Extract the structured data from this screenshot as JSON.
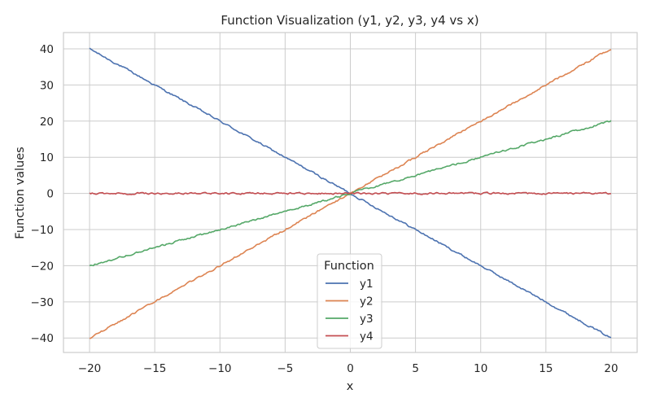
{
  "chart_data": {
    "type": "line",
    "title": "Function Visualization (y1, y2, y3, y4 vs x)",
    "xlabel": "x",
    "ylabel": "Function values",
    "xlim": [
      -22,
      22
    ],
    "ylim": [
      -44,
      44.5
    ],
    "x_ticks": [
      -20,
      -15,
      -10,
      -5,
      0,
      5,
      10,
      15,
      20
    ],
    "y_ticks": [
      -40,
      -30,
      -20,
      -10,
      0,
      10,
      20,
      30,
      40
    ],
    "x_tick_labels": [
      "−20",
      "−15",
      "−10",
      "−5",
      "0",
      "5",
      "10",
      "15",
      "20"
    ],
    "y_tick_labels": [
      "−40",
      "−30",
      "−20",
      "−10",
      "0",
      "10",
      "20",
      "30",
      "40"
    ],
    "grid": true,
    "legend": {
      "title": "Function",
      "placement": "lower-center"
    },
    "series": [
      {
        "name": "y1",
        "color": "#4c72b0",
        "x": [
          -20,
          -15,
          -10,
          -5,
          0,
          5,
          10,
          15,
          20
        ],
        "y": [
          40,
          30,
          20,
          10,
          0,
          -10,
          -20,
          -30,
          -40
        ]
      },
      {
        "name": "y2",
        "color": "#dd8452",
        "x": [
          -20,
          -15,
          -10,
          -5,
          0,
          5,
          10,
          15,
          20
        ],
        "y": [
          -40,
          -30,
          -20,
          -10,
          0,
          10,
          20,
          30,
          40
        ]
      },
      {
        "name": "y3",
        "color": "#55a868",
        "x": [
          -20,
          -15,
          -10,
          -5,
          0,
          5,
          10,
          15,
          20
        ],
        "y": [
          -20,
          -15,
          -10,
          -5,
          0,
          5,
          10,
          15,
          20
        ]
      },
      {
        "name": "y4",
        "color": "#c44e52",
        "x": [
          -20,
          -15,
          -10,
          -5,
          0,
          5,
          10,
          15,
          20
        ],
        "y": [
          0,
          0,
          0,
          0,
          0,
          0,
          0,
          0,
          0
        ]
      }
    ]
  }
}
